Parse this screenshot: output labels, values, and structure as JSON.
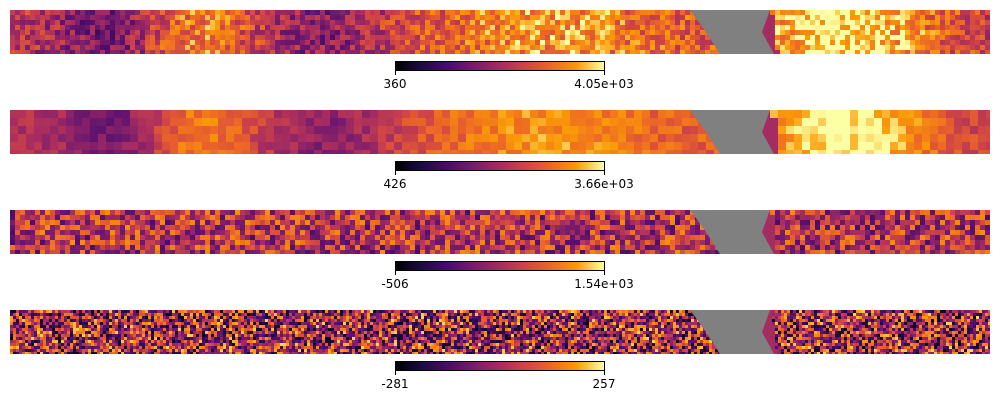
{
  "panels": [
    {
      "id": "map-1",
      "colorbar": {
        "min_label": "360",
        "max_label": "4.05e+03"
      }
    },
    {
      "id": "map-2",
      "colorbar": {
        "min_label": "426",
        "max_label": "3.66e+03"
      }
    },
    {
      "id": "map-3",
      "colorbar": {
        "min_label": "-506",
        "max_label": "1.54e+03"
      }
    },
    {
      "id": "map-4",
      "colorbar": {
        "min_label": "-281",
        "max_label": "257"
      }
    }
  ],
  "colors": {
    "masked": "#808080",
    "colormap": "inferno"
  }
}
